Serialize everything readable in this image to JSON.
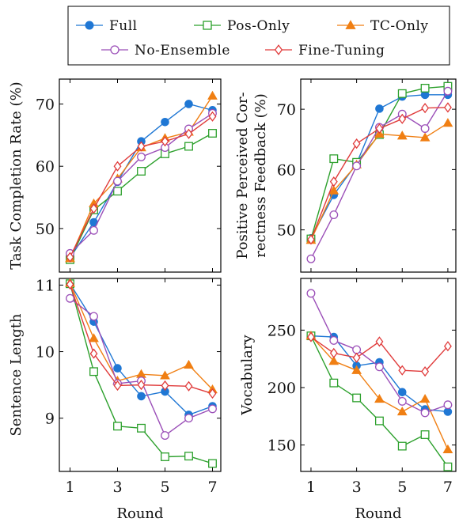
{
  "legend": {
    "items": [
      {
        "label": "Full",
        "color": "#1f77d4",
        "marker": "circle-filled"
      },
      {
        "label": "Pos-Only",
        "color": "#2ca02c",
        "marker": "square-open"
      },
      {
        "label": "TC-Only",
        "color": "#f07f13",
        "marker": "triangle-filled"
      },
      {
        "label": "No-Ensemble",
        "color": "#9b4fb8",
        "marker": "circle-open"
      },
      {
        "label": "Fine-Tuning",
        "color": "#e03b3b",
        "marker": "diamond-open"
      }
    ]
  },
  "chart_data": [
    {
      "type": "line",
      "position": "top-left",
      "ylabel": [
        "Task Completion Rate (%)"
      ],
      "xlabel": "",
      "x": [
        1,
        2,
        3,
        4,
        5,
        6,
        7
      ],
      "xticks": [
        1,
        3,
        5,
        7
      ],
      "ylim": [
        43,
        74
      ],
      "yticks": [
        50,
        60,
        70
      ],
      "series": [
        {
          "name": "Full",
          "values": [
            45.3,
            51.0,
            57.5,
            64.0,
            67.1,
            70.0,
            69.0
          ]
        },
        {
          "name": "Pos-Only",
          "values": [
            45.0,
            53.0,
            56.0,
            59.2,
            62.0,
            63.2,
            65.3
          ]
        },
        {
          "name": "TC-Only",
          "values": [
            45.2,
            54.0,
            58.0,
            63.0,
            64.5,
            65.5,
            71.3
          ]
        },
        {
          "name": "No-Ensemble",
          "values": [
            46.0,
            49.7,
            57.6,
            61.5,
            63.0,
            66.0,
            68.5
          ]
        },
        {
          "name": "Fine-Tuning",
          "values": [
            45.4,
            53.2,
            60.0,
            63.2,
            64.0,
            65.2,
            68.0
          ]
        }
      ]
    },
    {
      "type": "line",
      "position": "top-right",
      "ylabel": [
        "Positive Perceived Cor-",
        "rectness Feedback (%)"
      ],
      "xlabel": "",
      "x": [
        1,
        2,
        3,
        4,
        5,
        6,
        7
      ],
      "xticks": [
        1,
        3,
        5,
        7
      ],
      "ylim": [
        43,
        75
      ],
      "yticks": [
        50,
        60,
        70
      ],
      "series": [
        {
          "name": "Full",
          "values": [
            48.6,
            55.8,
            61.0,
            70.1,
            72.1,
            72.4,
            72.4
          ]
        },
        {
          "name": "Pos-Only",
          "values": [
            48.5,
            61.8,
            61.2,
            65.8,
            72.6,
            73.5,
            73.8
          ]
        },
        {
          "name": "TC-Only",
          "values": [
            48.3,
            56.5,
            60.8,
            65.9,
            65.6,
            65.3,
            67.7
          ]
        },
        {
          "name": "No-Ensemble",
          "values": [
            45.2,
            52.5,
            60.6,
            67.0,
            69.2,
            66.8,
            73.0
          ]
        },
        {
          "name": "Fine-Tuning",
          "values": [
            48.4,
            58.0,
            64.3,
            66.8,
            68.4,
            70.2,
            70.3
          ]
        }
      ]
    },
    {
      "type": "line",
      "position": "bottom-left",
      "ylabel": [
        "Sentence Length"
      ],
      "xlabel": "Round",
      "x": [
        1,
        2,
        3,
        4,
        5,
        6,
        7
      ],
      "xticks": [
        1,
        3,
        5,
        7
      ],
      "ylim": [
        8.2,
        11.1
      ],
      "yticks": [
        9,
        10,
        11
      ],
      "series": [
        {
          "name": "Full",
          "values": [
            11.02,
            10.45,
            9.75,
            9.33,
            9.4,
            9.05,
            9.18
          ]
        },
        {
          "name": "Pos-Only",
          "values": [
            11.02,
            9.7,
            8.88,
            8.85,
            8.42,
            8.43,
            8.32
          ]
        },
        {
          "name": "TC-Only",
          "values": [
            11.03,
            10.2,
            9.56,
            9.66,
            9.64,
            9.8,
            9.43
          ]
        },
        {
          "name": "No-Ensemble",
          "values": [
            10.8,
            10.53,
            9.52,
            9.56,
            8.74,
            9.0,
            9.14
          ]
        },
        {
          "name": "Fine-Tuning",
          "values": [
            11.01,
            9.97,
            9.49,
            9.5,
            9.49,
            9.48,
            9.37
          ]
        }
      ]
    },
    {
      "type": "line",
      "position": "bottom-right",
      "ylabel": [
        "Vocabulary"
      ],
      "xlabel": "Round",
      "x": [
        1,
        2,
        3,
        4,
        5,
        6,
        7
      ],
      "xticks": [
        1,
        3,
        5,
        7
      ],
      "ylim": [
        127,
        295
      ],
      "yticks": [
        150,
        200,
        250
      ],
      "series": [
        {
          "name": "Full",
          "values": [
            245,
            244,
            219,
            222,
            196,
            181,
            179
          ]
        },
        {
          "name": "Pos-Only",
          "values": [
            245,
            204,
            191,
            171,
            149,
            159,
            131
          ]
        },
        {
          "name": "TC-Only",
          "values": [
            245,
            223,
            215,
            190,
            179,
            190,
            146
          ]
        },
        {
          "name": "No-Ensemble",
          "values": [
            282,
            241,
            233,
            218,
            188,
            178,
            185
          ]
        },
        {
          "name": "Fine-Tuning",
          "values": [
            244,
            230,
            226,
            240,
            215,
            214,
            236
          ]
        }
      ]
    }
  ]
}
